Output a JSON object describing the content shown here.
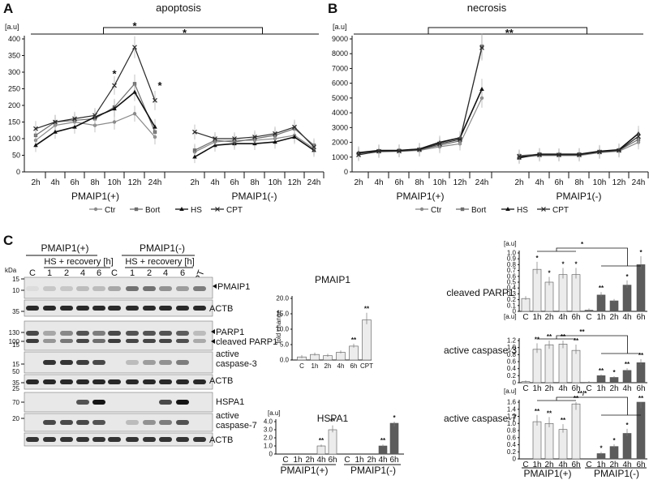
{
  "panels": {
    "A": "A",
    "B": "B",
    "C": "C"
  },
  "line_charts": [
    {
      "title": "apoptosis",
      "unit": "[a.u]",
      "yticks": [
        0,
        50,
        100,
        150,
        200,
        250,
        300,
        350,
        400
      ],
      "ylim": [
        0,
        400
      ],
      "xticks_left": [
        "2h",
        "4h",
        "6h",
        "8h",
        "10h",
        "12h",
        "24h"
      ],
      "xticks_right": [
        "2h",
        "4h",
        "6h",
        "8h",
        "10h",
        "12h",
        "24h"
      ],
      "group_left": "PMAIP1(+)",
      "group_right": "PMAIP1(-)",
      "bracket_sig": "*",
      "point_sigs": [
        "*",
        "*",
        "*"
      ]
    },
    {
      "title": "necrosis",
      "unit": "[a.u]",
      "yticks": [
        0,
        1000,
        2000,
        3000,
        4000,
        5000,
        6000,
        7000,
        8000,
        9000
      ],
      "ylim": [
        0,
        9000
      ],
      "xticks_left": [
        "2h",
        "4h",
        "6h",
        "8h",
        "10h",
        "12h",
        "24h"
      ],
      "xticks_right": [
        "2h",
        "4h",
        "6h",
        "8h",
        "10h",
        "12h",
        "24h"
      ],
      "group_left": "PMAIP1(+)",
      "group_right": "PMAIP1(-)",
      "bracket_sig": "**",
      "point_sigs": []
    }
  ],
  "legend": [
    "Ctr",
    "Bort",
    "HS",
    "CPT"
  ],
  "colors": {
    "Ctr": "#8a8a8a",
    "Bort": "#6e6e6e",
    "HS": "#111111",
    "CPT": "#2a2a2a",
    "light_bar": "#ececec",
    "dark_bar": "#5c5c5c"
  },
  "chart_data": [
    {
      "type": "line",
      "title": "apoptosis",
      "ylabel": "[a.u]",
      "ylim": [
        0,
        400
      ],
      "x": [
        "2h",
        "4h",
        "6h",
        "8h",
        "10h",
        "12h",
        "24h"
      ],
      "groups": [
        "PMAIP1(+)",
        "PMAIP1(-)"
      ],
      "series": [
        {
          "name": "Ctr",
          "plus": [
            95,
            140,
            150,
            140,
            150,
            175,
            105
          ],
          "minus": [
            60,
            90,
            95,
            95,
            100,
            110,
            70
          ]
        },
        {
          "name": "Bort",
          "plus": [
            110,
            150,
            155,
            160,
            195,
            265,
            120
          ],
          "minus": [
            65,
            95,
            90,
            100,
            110,
            130,
            80
          ]
        },
        {
          "name": "HS",
          "plus": [
            80,
            120,
            135,
            165,
            190,
            240,
            135
          ],
          "minus": [
            45,
            80,
            85,
            85,
            90,
            105,
            65
          ]
        },
        {
          "name": "CPT",
          "plus": [
            130,
            150,
            160,
            170,
            260,
            375,
            215
          ],
          "minus": [
            120,
            100,
            100,
            105,
            115,
            135,
            75
          ]
        }
      ]
    },
    {
      "type": "line",
      "title": "necrosis",
      "ylabel": "[a.u]",
      "ylim": [
        0,
        9000
      ],
      "x": [
        "2h",
        "4h",
        "6h",
        "8h",
        "10h",
        "12h",
        "24h"
      ],
      "groups": [
        "PMAIP1(+)",
        "PMAIP1(-)"
      ],
      "series": [
        {
          "name": "Ctr",
          "plus": [
            1200,
            1350,
            1400,
            1450,
            1700,
            1900,
            5000
          ],
          "minus": [
            1000,
            1100,
            1100,
            1100,
            1300,
            1400,
            2000
          ]
        },
        {
          "name": "Bort",
          "plus": [
            1250,
            1400,
            1450,
            1500,
            1800,
            2100,
            8500
          ],
          "minus": [
            1100,
            1200,
            1150,
            1200,
            1350,
            1450,
            2200
          ]
        },
        {
          "name": "HS",
          "plus": [
            1300,
            1450,
            1450,
            1550,
            2000,
            2300,
            5600
          ],
          "minus": [
            950,
            1200,
            1200,
            1200,
            1400,
            1500,
            2600
          ]
        },
        {
          "name": "CPT",
          "plus": [
            1150,
            1400,
            1400,
            1500,
            1900,
            2200,
            8400
          ],
          "minus": [
            1050,
            1150,
            1150,
            1150,
            1350,
            1450,
            2400
          ]
        }
      ]
    },
    {
      "type": "bar",
      "title": "PMAIP1",
      "ylabel": "fold change",
      "ylim": [
        0,
        20
      ],
      "categories": [
        "C",
        "1h",
        "2h",
        "4h",
        "6h",
        "CPT"
      ],
      "values": [
        1,
        1.8,
        1.4,
        2.5,
        4.5,
        13
      ],
      "sigs": [
        "",
        "",
        "",
        "",
        "**",
        "**"
      ]
    },
    {
      "type": "bar",
      "title": "HSPA1",
      "ylabel": "[a.u]",
      "ylim": [
        0,
        4
      ],
      "categories": [
        "C",
        "1h",
        "2h",
        "4h",
        "6h",
        "C",
        "1h",
        "2h",
        "4h",
        "6h"
      ],
      "values": [
        0,
        0,
        0,
        1.0,
        3.0,
        0,
        0,
        0,
        1.0,
        3.8
      ],
      "sigs": [
        "",
        "",
        "",
        "**",
        "**",
        "",
        "",
        "",
        "**",
        "*"
      ],
      "groups": [
        "PMAIP1(+)",
        "PMAIP1(-)"
      ]
    },
    {
      "type": "bar",
      "title": "cleaved PARP1",
      "ylabel": "[a.u]",
      "ylim": [
        0,
        1.0
      ],
      "categories": [
        "C",
        "1h",
        "2h",
        "4h",
        "6h",
        "C",
        "1h",
        "2h",
        "4h",
        "6h"
      ],
      "values": [
        0.22,
        0.72,
        0.5,
        0.63,
        0.63,
        0.02,
        0.28,
        0.18,
        0.45,
        0.8
      ],
      "sigs": [
        "",
        "*",
        "*",
        "*",
        "*",
        "",
        "**",
        "",
        "*",
        "*"
      ],
      "bracket_sig": "*"
    },
    {
      "type": "bar",
      "title": "active caspase-3",
      "ylabel": "[a.u]",
      "ylim": [
        0,
        1.2
      ],
      "categories": [
        "C",
        "1h",
        "2h",
        "4h",
        "6h",
        "C",
        "1h",
        "2h",
        "4h",
        "6h"
      ],
      "values": [
        0.03,
        0.95,
        1.08,
        1.1,
        0.92,
        0.01,
        0.2,
        0.15,
        0.35,
        0.57
      ],
      "sigs": [
        "",
        "**",
        "**",
        "**",
        "**",
        "",
        "**",
        "*",
        "**",
        "**"
      ],
      "bracket_sig": "**"
    },
    {
      "type": "bar",
      "title": "active caspase-7",
      "ylabel": "[a.u]",
      "ylim": [
        0,
        1.6
      ],
      "categories": [
        "C",
        "1h",
        "2h",
        "4h",
        "6h",
        "C",
        "1h",
        "2h",
        "4h",
        "6h"
      ],
      "values": [
        0,
        1.05,
        1.0,
        0.83,
        1.55,
        0,
        0.15,
        0.35,
        0.72,
        1.6
      ],
      "sigs": [
        "",
        "**",
        "**",
        "**",
        "**",
        "",
        "*",
        "*",
        "*",
        "**"
      ],
      "bracket_sig": "**/*",
      "groups": [
        "PMAIP1(+)",
        "PMAIP1(-)"
      ]
    }
  ],
  "western": {
    "group_plus": "PMAIP1(+)",
    "group_minus": "PMAIP1(-)",
    "hs_label_plus": "HS + recovery [h]",
    "hs_label_minus": "HS + recovery [h]",
    "kda": "kDa",
    "lanes_plus": [
      "C",
      "1",
      "2",
      "4",
      "6"
    ],
    "lanes_minus": [
      "C",
      "1",
      "2",
      "4",
      "6"
    ],
    "cpt": "CPT",
    "star": "*",
    "blots": [
      {
        "label": "PMAIP1",
        "marker": "10"
      },
      {
        "label": "ACTB",
        "marker": "35"
      },
      {
        "label": "PARP1",
        "marker": "130"
      },
      {
        "label": "cleaved PARP1",
        "marker": "100"
      },
      {
        "label": "active caspase-3",
        "marker": "15"
      },
      {
        "label": "ACTB",
        "marker": "35"
      },
      {
        "label": "HSPA1",
        "marker": "70"
      },
      {
        "label": "active caspase-7",
        "marker": "20"
      },
      {
        "label": "ACTB",
        "marker": "50"
      }
    ],
    "extra_markers": [
      "15",
      "50",
      "25"
    ]
  },
  "pmaip1_bar": {
    "title": "PMAIP1",
    "ylabel": "fold change",
    "yticks": [
      "0.0",
      "5.0",
      "10.0",
      "15.0",
      "20.0"
    ]
  },
  "hspa1_bar": {
    "title": "HSPA1",
    "unit": "[a.u]",
    "yticks": [
      "0",
      "1.0",
      "2.0",
      "3.0",
      "4.0"
    ],
    "group_plus": "PMAIP1(+)",
    "group_minus": "PMAIP1(-)"
  },
  "right_bars": {
    "unit": "[a.u]",
    "group_plus": "PMAIP1(+)",
    "group_minus": "PMAIP1(-)",
    "yticks_parp": [
      "0",
      "0.1",
      "0.2",
      "0.3",
      "0.4",
      "0.5",
      "0.6",
      "0.7",
      "0.8",
      "0.9",
      "1.0"
    ],
    "yticks_casp3": [
      "0",
      "0.2",
      "0.4",
      "0.6",
      "0.8",
      "1.0",
      "1.2"
    ],
    "yticks_casp7": [
      "0",
      "0.2",
      "0.4",
      "0.6",
      "0.8",
      "1.0",
      "1.2",
      "1.4",
      "1.6"
    ]
  }
}
